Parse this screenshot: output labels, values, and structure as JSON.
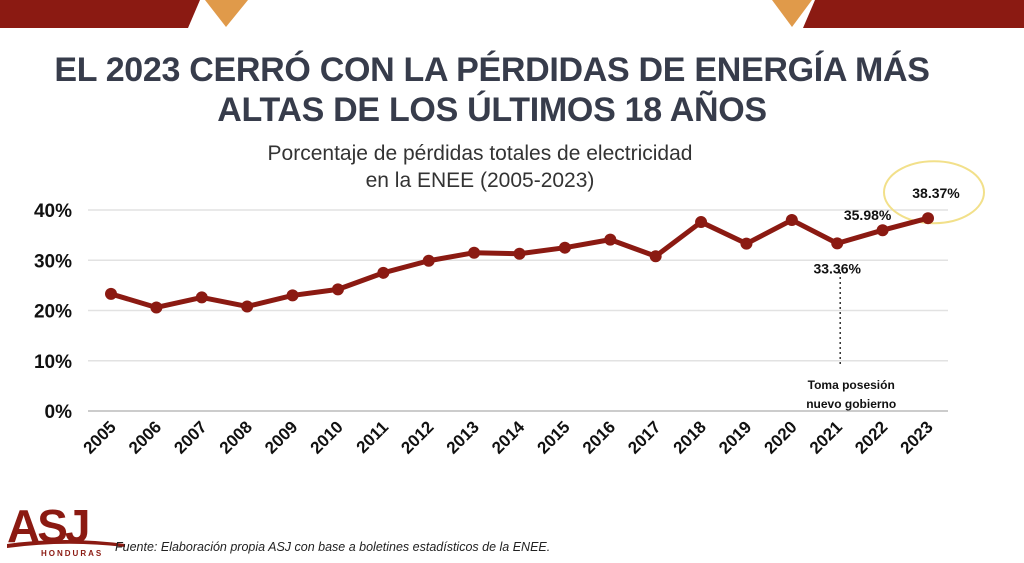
{
  "title_line1": "EL 2023 CERRÓ CON LA PÉRDIDAS DE ENERGÍA MÁS",
  "title_line2": "ALTAS DE LOS ÚLTIMOS 18 AÑOS",
  "colors": {
    "line": "#8b1a12",
    "title": "#373c4b",
    "banner": "#8b1a12",
    "accent": "#e09a4a",
    "highlight": "#f2e08a"
  },
  "chart_data": {
    "type": "line",
    "title": "Porcentaje de pérdidas totales de electricidad en la ENEE (2005-2023)",
    "title_line1": "Porcentaje de pérdidas totales de electricidad",
    "title_line2": "en la ENEE (2005-2023)",
    "categories": [
      "2005",
      "2006",
      "2007",
      "2008",
      "2009",
      "2010",
      "2011",
      "2012",
      "2013",
      "2014",
      "2015",
      "2016",
      "2017",
      "2018",
      "2019",
      "2020",
      "2021",
      "2022",
      "2023"
    ],
    "values": [
      23.3,
      20.6,
      22.6,
      20.8,
      23.0,
      24.2,
      27.5,
      29.9,
      31.5,
      31.3,
      32.5,
      34.1,
      30.8,
      37.6,
      33.3,
      38.0,
      33.36,
      35.98,
      38.37
    ],
    "ylim": [
      0,
      40
    ],
    "yticks": [
      "0%",
      "10%",
      "20%",
      "30%",
      "40%"
    ],
    "grid": true,
    "data_labels": [
      {
        "category": "2021",
        "text": "33.36%"
      },
      {
        "category": "2022",
        "text": "35.98%"
      },
      {
        "category": "2023",
        "text": "38.37%",
        "highlighted": true
      }
    ],
    "annotation": {
      "category": "2021",
      "line1": "Toma posesión",
      "line2": "nuevo gobierno"
    }
  },
  "logo": {
    "text": "ASJ",
    "subtext": "HONDURAS"
  },
  "source": "Fuente: Elaboración propia ASJ con base a boletines estadísticos de la ENEE."
}
